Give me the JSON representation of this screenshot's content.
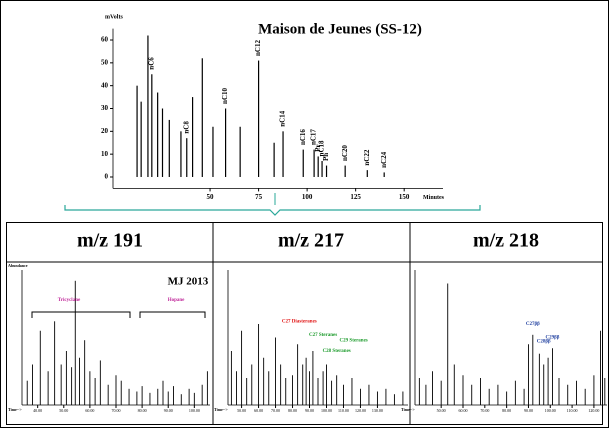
{
  "chart_data": [
    {
      "type": "stem",
      "title": "Maison de Jeunes (SS-12)",
      "y_label": "mVolts",
      "x_label": "Minutes",
      "color": "#000000",
      "x": [
        12.4,
        14.5,
        18,
        20,
        23,
        25.5,
        29,
        35,
        38,
        41,
        46,
        51.5,
        58,
        65.5,
        75,
        83,
        87.6,
        98,
        103.6,
        105.7,
        107.7,
        110,
        119.6,
        131,
        139.7
      ],
      "values": [
        40,
        33,
        62,
        45,
        37,
        30,
        25,
        20,
        17,
        35,
        52,
        22,
        30,
        22,
        51,
        15,
        20,
        12,
        12,
        9,
        7,
        5,
        5,
        3,
        2
      ],
      "xlim": [
        0,
        170
      ],
      "ylim": [
        -5,
        65
      ],
      "xticks": [
        50,
        75,
        100,
        125,
        150
      ],
      "yticks": [
        0,
        10,
        20,
        30,
        40,
        50,
        60
      ],
      "annotations": [
        {
          "text": "nC6",
          "x": 20,
          "y": 47,
          "color": "#000000"
        },
        {
          "text": "nC8",
          "x": 38,
          "y": 19,
          "color": "#000000"
        },
        {
          "text": "nC10",
          "x": 58,
          "y": 32,
          "color": "#000000"
        },
        {
          "text": "nC12",
          "x": 75,
          "y": 53,
          "color": "#000000"
        },
        {
          "text": "nC14",
          "x": 87.6,
          "y": 22,
          "color": "#000000"
        },
        {
          "text": "nC16",
          "x": 98,
          "y": 14,
          "color": "#000000"
        },
        {
          "text": "nC17",
          "x": 103.6,
          "y": 14,
          "color": "#000000"
        },
        {
          "text": "Pr",
          "x": 105.7,
          "y": 11,
          "color": "#000000"
        },
        {
          "text": "nC18",
          "x": 107.7,
          "y": 9,
          "color": "#000000"
        },
        {
          "text": "Ph",
          "x": 110,
          "y": 7,
          "color": "#000000"
        },
        {
          "text": "nC20",
          "x": 119.6,
          "y": 7,
          "color": "#000000"
        },
        {
          "text": "nC22",
          "x": 131,
          "y": 5,
          "color": "#000000"
        },
        {
          "text": "nC24",
          "x": 139.7,
          "y": 4,
          "color": "#000000"
        }
      ]
    },
    {
      "type": "stem",
      "title": "m/z 191",
      "subtitle": "MJ 2013",
      "y_label": "Abundance",
      "x_label": "Time-->",
      "color": "#000000",
      "x": [
        36,
        38,
        41,
        44,
        46.5,
        49,
        51,
        53,
        54.4,
        56,
        58,
        60,
        62,
        64,
        67,
        70,
        72,
        75,
        78,
        80,
        83,
        86,
        88,
        90,
        92,
        95,
        98,
        100,
        103,
        105
      ],
      "values": [
        18,
        30,
        55,
        25,
        62,
        30,
        40,
        28,
        92,
        35,
        48,
        25,
        20,
        33,
        15,
        22,
        18,
        12,
        10,
        14,
        9,
        12,
        18,
        10,
        14,
        8,
        12,
        9,
        15,
        25
      ],
      "xlim": [
        34,
        106
      ],
      "ylim": [
        0,
        100
      ],
      "xticks": [
        {
          "value": 40,
          "label": "40.00"
        },
        {
          "value": 50,
          "label": "50.00"
        },
        {
          "value": 60,
          "label": "60.00"
        },
        {
          "value": 70,
          "label": "70.00"
        },
        {
          "value": 80,
          "label": "80.00"
        },
        {
          "value": 90,
          "label": "90.00"
        },
        {
          "value": 100,
          "label": "100.00"
        }
      ],
      "annotations": [
        {
          "text": "Tricyclane",
          "x": 52,
          "y": 78,
          "color": "#c0289a"
        },
        {
          "text": "Hopane",
          "x": 93,
          "y": 78,
          "color": "#c0289a"
        }
      ]
    },
    {
      "type": "stem",
      "title": "m/z 217",
      "x_label": "Time-->",
      "color": "#000000",
      "x": [
        44,
        47,
        50,
        53,
        56,
        60,
        63,
        66,
        70,
        73,
        76,
        80,
        83,
        86,
        88,
        90,
        92,
        95,
        98,
        100,
        103,
        106,
        110,
        115,
        120,
        125,
        130,
        135,
        140,
        145
      ],
      "values": [
        40,
        25,
        55,
        20,
        30,
        60,
        35,
        25,
        50,
        30,
        20,
        22,
        45,
        30,
        35,
        25,
        40,
        20,
        25,
        30,
        18,
        22,
        15,
        20,
        12,
        15,
        10,
        12,
        8,
        10
      ],
      "xlim": [
        42,
        148
      ],
      "ylim": [
        0,
        100
      ],
      "xticks": [
        {
          "value": 50,
          "label": "50.00"
        },
        {
          "value": 60,
          "label": "60.00"
        },
        {
          "value": 70,
          "label": "70.00"
        },
        {
          "value": 80,
          "label": "80.00"
        },
        {
          "value": 90,
          "label": "90.00"
        },
        {
          "value": 100,
          "label": "100.00"
        },
        {
          "value": 110,
          "label": "110.00"
        },
        {
          "value": 120,
          "label": "120.00"
        },
        {
          "value": 130,
          "label": "130.00"
        }
      ],
      "annotations": [
        {
          "text": "C27 Diasteranes",
          "x": 84,
          "y": 62,
          "color": "#e01010"
        },
        {
          "text": "C27 Steranes",
          "x": 98,
          "y": 52,
          "color": "#1a9a2a"
        },
        {
          "text": "C28 Steranes",
          "x": 106,
          "y": 40,
          "color": "#1a9a2a"
        },
        {
          "text": "C29 Steranes",
          "x": 116,
          "y": 48,
          "color": "#1a9a2a"
        }
      ]
    },
    {
      "type": "stem",
      "title": "m/z 218",
      "x_label": "Time-->",
      "color": "#000000",
      "x": [
        40,
        43,
        46,
        50,
        53,
        56,
        60,
        64,
        68,
        72,
        76,
        80,
        84,
        88,
        90,
        92,
        95,
        97,
        99,
        101,
        104,
        108,
        112,
        116,
        120,
        123,
        125
      ],
      "values": [
        20,
        15,
        25,
        18,
        90,
        30,
        22,
        15,
        20,
        12,
        15,
        10,
        18,
        12,
        45,
        52,
        38,
        30,
        35,
        42,
        20,
        15,
        18,
        12,
        22,
        55,
        20
      ],
      "xlim": [
        38,
        126
      ],
      "ylim": [
        0,
        100
      ],
      "xticks": [
        {
          "value": 50,
          "label": "50.00"
        },
        {
          "value": 60,
          "label": "60.00"
        },
        {
          "value": 70,
          "label": "70.00"
        },
        {
          "value": 80,
          "label": "80.00"
        },
        {
          "value": 90,
          "label": "90.00"
        },
        {
          "value": 100,
          "label": "100.00"
        },
        {
          "value": 110,
          "label": "110.00"
        },
        {
          "value": 120,
          "label": "120.00"
        }
      ],
      "annotations": [
        {
          "text": "C27ββ",
          "x": 92,
          "y": 60,
          "color": "#1f3f9f"
        },
        {
          "text": "C28ββ",
          "x": 97,
          "y": 47,
          "color": "#1f3f9f"
        },
        {
          "text": "C29ββ",
          "x": 101,
          "y": 50,
          "color": "#1f3f9f"
        }
      ]
    }
  ]
}
